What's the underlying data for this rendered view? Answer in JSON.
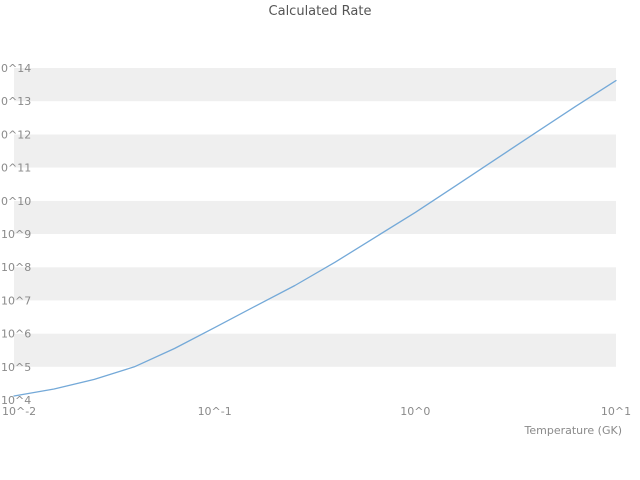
{
  "chart_data": {
    "type": "line",
    "title": "Calculated Rate",
    "xlabel": "Temperature (GK)",
    "ylabel": "",
    "x_scale": "log10",
    "y_scale": "log10",
    "xlim_log": [
      -2,
      1
    ],
    "ylim_log": [
      4,
      14
    ],
    "grid": "horizontal-alternating-bands",
    "legend": "none",
    "band_colors": [
      "#efefef",
      "#ffffff"
    ],
    "x_ticks": [
      {
        "log": -2,
        "label": "10^-2"
      },
      {
        "log": -1,
        "label": "10^-1"
      },
      {
        "log": 0,
        "label": "10^0"
      },
      {
        "log": 1,
        "label": "10^1"
      }
    ],
    "y_ticks": [
      {
        "log": 4,
        "label": "10^4"
      },
      {
        "log": 5,
        "label": "10^5"
      },
      {
        "log": 6,
        "label": "10^6"
      },
      {
        "log": 7,
        "label": "10^7"
      },
      {
        "log": 8,
        "label": "10^8"
      },
      {
        "log": 9,
        "label": "10^9"
      },
      {
        "log": 10,
        "label": "0^10"
      },
      {
        "log": 11,
        "label": "0^11"
      },
      {
        "log": 12,
        "label": "0^12"
      },
      {
        "log": 13,
        "label": "0^13"
      },
      {
        "log": 14,
        "label": "0^14"
      }
    ],
    "series": [
      {
        "name": "Calculated Rate",
        "color": "#74a9d8",
        "x_log": [
          -2.0,
          -1.8,
          -1.6,
          -1.4,
          -1.2,
          -1.0,
          -0.8,
          -0.6,
          -0.4,
          -0.2,
          0.0,
          0.2,
          0.4,
          0.6,
          0.8,
          1.0
        ],
        "y_log": [
          4.12,
          4.33,
          4.62,
          5.0,
          5.55,
          6.18,
          6.82,
          7.45,
          8.15,
          8.9,
          9.65,
          10.45,
          11.25,
          12.05,
          12.85,
          13.62
        ]
      }
    ]
  }
}
